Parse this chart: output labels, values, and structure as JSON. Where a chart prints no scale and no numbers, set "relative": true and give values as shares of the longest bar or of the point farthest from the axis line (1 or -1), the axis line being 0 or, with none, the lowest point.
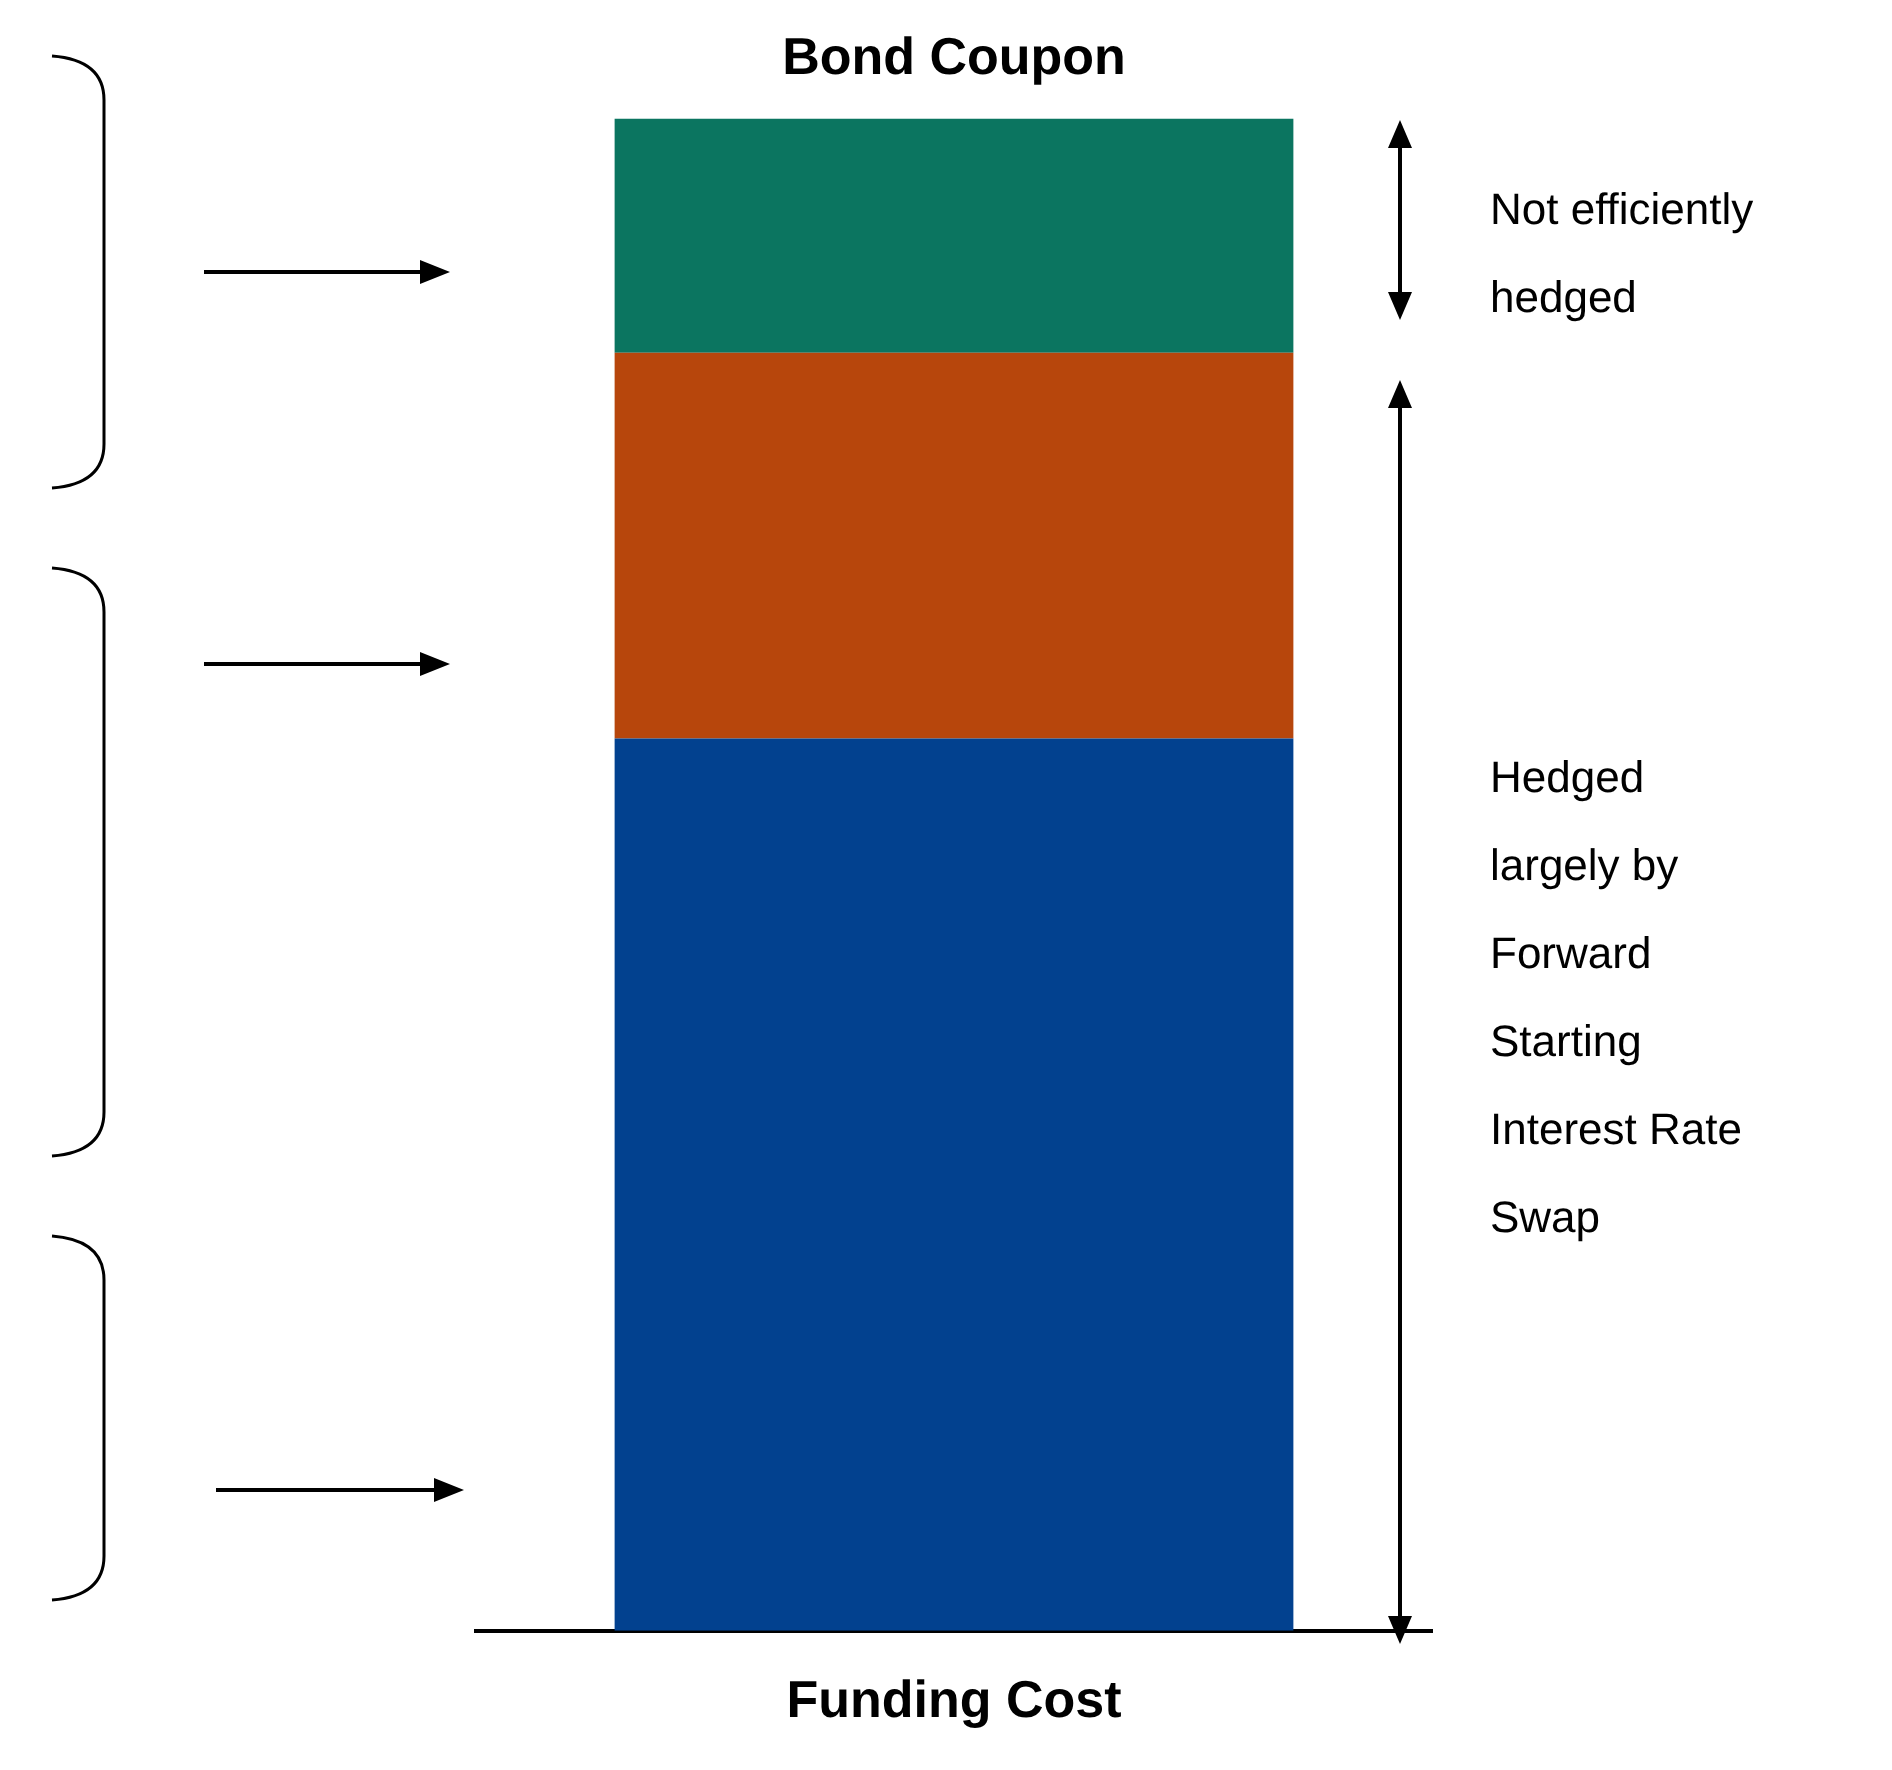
{
  "chart_data": {
    "type": "bar",
    "title": "Bond Coupon",
    "xlabel": "Funding Cost",
    "relative": true,
    "stacked": true,
    "categories": [
      null
    ],
    "series": [
      {
        "color": "#02418f",
        "values": [
          0.59
        ]
      },
      {
        "color": "#b7460c",
        "values": [
          0.255
        ]
      },
      {
        "color": "#0b7560",
        "values": [
          0.155
        ]
      }
    ],
    "annotations": [
      "Not efficiently hedged",
      "Hedged largely by Forward Starting Interest Rate Swap"
    ],
    "legend": false,
    "grid": false
  }
}
